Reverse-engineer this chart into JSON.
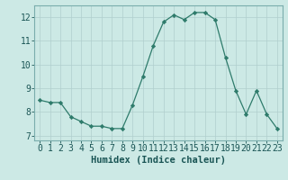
{
  "x": [
    0,
    1,
    2,
    3,
    4,
    5,
    6,
    7,
    8,
    9,
    10,
    11,
    12,
    13,
    14,
    15,
    16,
    17,
    18,
    19,
    20,
    21,
    22,
    23
  ],
  "y": [
    8.5,
    8.4,
    8.4,
    7.8,
    7.6,
    7.4,
    7.4,
    7.3,
    7.3,
    8.3,
    9.5,
    10.8,
    11.8,
    12.1,
    11.9,
    12.2,
    12.2,
    11.9,
    10.3,
    8.9,
    7.9,
    8.9,
    7.9,
    7.3
  ],
  "line_color": "#2e7b6b",
  "marker": "D",
  "marker_size": 2.2,
  "bg_color": "#cce9e5",
  "grid_color": "#b0cece",
  "xlabel": "Humidex (Indice chaleur)",
  "xlim": [
    -0.5,
    23.5
  ],
  "ylim": [
    6.8,
    12.5
  ],
  "yticks": [
    7,
    8,
    9,
    10,
    11,
    12
  ],
  "xticks": [
    0,
    1,
    2,
    3,
    4,
    5,
    6,
    7,
    8,
    9,
    10,
    11,
    12,
    13,
    14,
    15,
    16,
    17,
    18,
    19,
    20,
    21,
    22,
    23
  ],
  "xlabel_fontsize": 7.5,
  "tick_fontsize": 7.0,
  "spine_color": "#7aadad",
  "text_color": "#1a5555"
}
